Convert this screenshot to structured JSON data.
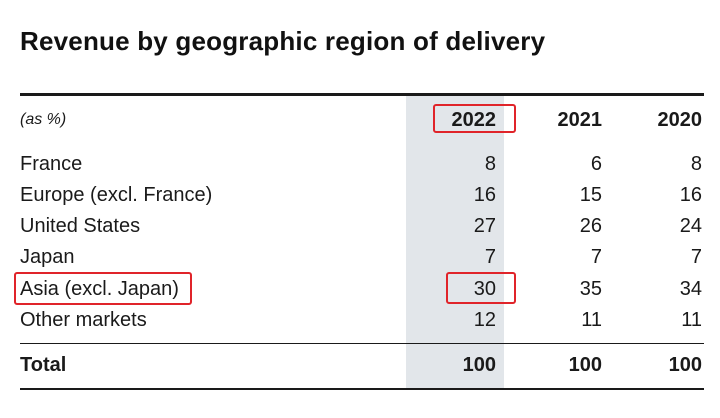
{
  "title": "Revenue by geographic region of delivery",
  "table": {
    "unit_label": "(as %)",
    "years": [
      "2022",
      "2021",
      "2020"
    ],
    "rows": [
      {
        "label": "France",
        "values": [
          "8",
          "6",
          "8"
        ]
      },
      {
        "label": "Europe (excl. France)",
        "values": [
          "16",
          "15",
          "16"
        ]
      },
      {
        "label": "United States",
        "values": [
          "27",
          "26",
          "24"
        ]
      },
      {
        "label": "Japan",
        "values": [
          "7",
          "7",
          "7"
        ]
      },
      {
        "label": "Asia (excl. Japan)",
        "values": [
          "30",
          "35",
          "34"
        ]
      },
      {
        "label": "Other markets",
        "values": [
          "12",
          "11",
          "11"
        ]
      }
    ],
    "total": {
      "label": "Total",
      "values": [
        "100",
        "100",
        "100"
      ]
    }
  },
  "colors": {
    "highlight_box": "#e0242a",
    "column_shade": "#e2e6ea"
  }
}
